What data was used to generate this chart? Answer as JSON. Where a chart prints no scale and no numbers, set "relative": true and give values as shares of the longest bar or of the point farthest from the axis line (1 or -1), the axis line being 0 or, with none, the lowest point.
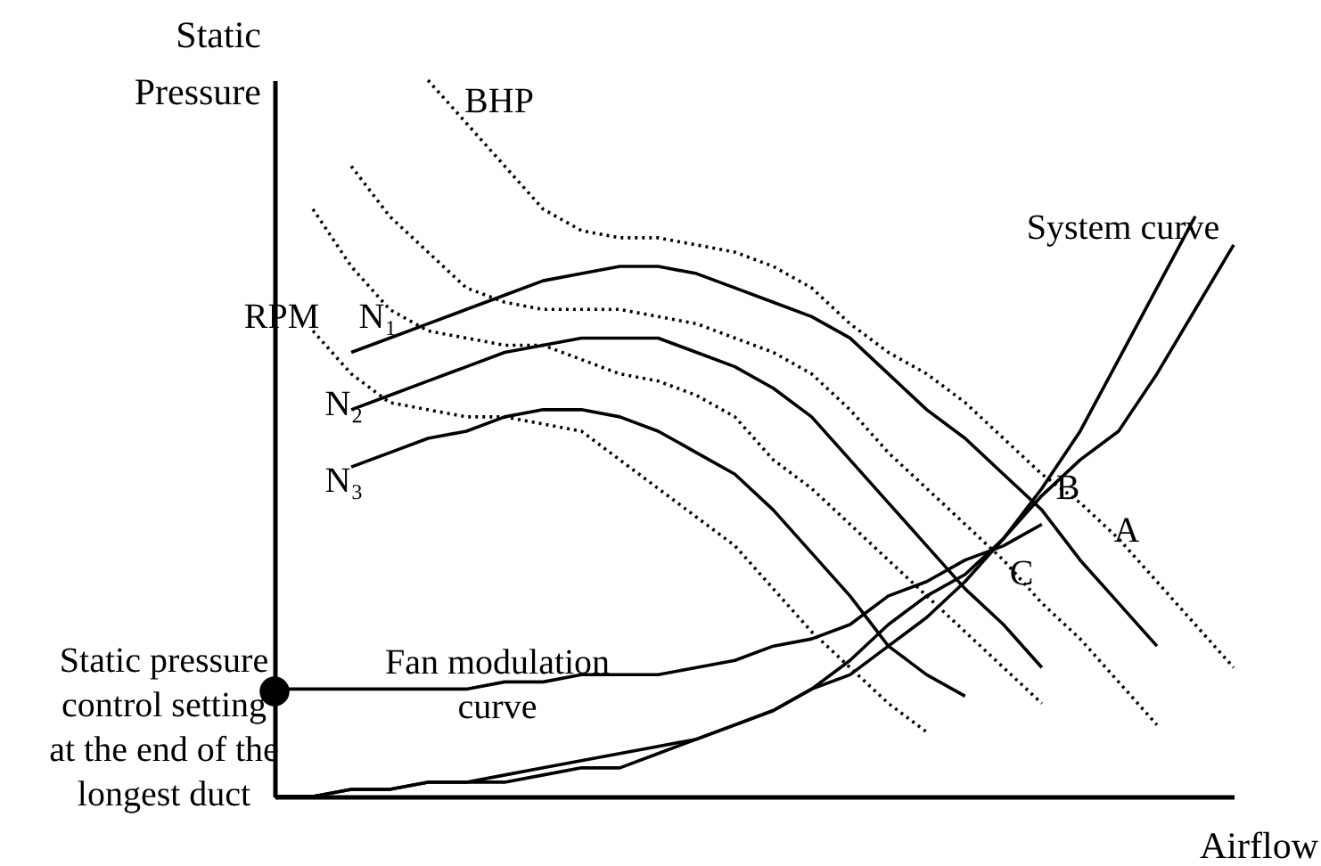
{
  "chart_data": {
    "type": "line",
    "relative": true,
    "xlabel": "Airflow",
    "ylabel": "Static Pressure",
    "grid": false,
    "categories": [
      null,
      null,
      null,
      null,
      null,
      null,
      null,
      null,
      null,
      null,
      null,
      null,
      null,
      null,
      null,
      null,
      null,
      null,
      null,
      null,
      null,
      null,
      null,
      null,
      null,
      null
    ],
    "series": [
      {
        "color": "#000000",
        "line_style": "solid",
        "values": [
          null,
          null,
          0.62,
          0.64,
          0.66,
          0.68,
          0.7,
          0.72,
          0.73,
          0.74,
          0.74,
          0.73,
          0.71,
          0.69,
          0.67,
          0.64,
          0.59,
          0.54,
          0.5,
          0.45,
          0.4,
          0.33,
          0.27,
          0.21,
          null,
          null
        ]
      },
      {
        "color": "#000000",
        "line_style": "solid",
        "values": [
          null,
          null,
          0.54,
          0.56,
          0.58,
          0.6,
          0.62,
          0.63,
          0.64,
          0.64,
          0.64,
          0.62,
          0.6,
          0.57,
          0.53,
          0.47,
          0.41,
          0.35,
          0.29,
          0.24,
          0.18,
          null,
          null,
          null,
          null,
          null
        ]
      },
      {
        "color": "#000000",
        "line_style": "solid",
        "values": [
          null,
          null,
          0.46,
          0.48,
          0.5,
          0.51,
          0.53,
          0.54,
          0.54,
          0.53,
          0.51,
          0.48,
          0.45,
          0.4,
          0.34,
          0.28,
          0.21,
          0.17,
          0.14,
          null,
          null,
          null,
          null,
          null,
          null,
          null
        ]
      },
      {
        "color": "#000000",
        "line_style": "dotted",
        "values": [
          null,
          null,
          null,
          null,
          1,
          0.94,
          0.88,
          0.82,
          0.79,
          0.78,
          0.78,
          0.77,
          0.76,
          0.74,
          0.71,
          0.66,
          0.62,
          0.59,
          0.55,
          0.5,
          0.45,
          0.41,
          0.36,
          0.3,
          0.24,
          0.18
        ]
      },
      {
        "color": "#000000",
        "line_style": "dotted",
        "values": [
          null,
          null,
          0.88,
          0.81,
          0.76,
          0.71,
          0.69,
          0.68,
          0.68,
          0.68,
          0.67,
          0.66,
          0.64,
          0.62,
          0.59,
          0.54,
          0.48,
          0.43,
          0.38,
          0.33,
          0.27,
          0.22,
          0.16,
          0.1,
          null,
          null
        ]
      },
      {
        "color": "#000000",
        "line_style": "dotted",
        "values": [
          null,
          0.82,
          0.74,
          0.68,
          0.65,
          0.64,
          0.63,
          0.63,
          0.61,
          0.59,
          0.58,
          0.56,
          0.53,
          0.47,
          0.43,
          0.38,
          0.33,
          0.28,
          0.23,
          0.18,
          0.13,
          null,
          null,
          null,
          null,
          null
        ]
      },
      {
        "color": "#000000",
        "line_style": "dotted",
        "values": [
          null,
          0.65,
          0.59,
          0.55,
          0.54,
          0.53,
          0.53,
          0.52,
          0.51,
          0.47,
          0.43,
          0.39,
          0.35,
          0.29,
          0.23,
          0.18,
          0.13,
          0.09,
          null,
          null,
          null,
          null,
          null,
          null,
          null,
          null
        ]
      },
      {
        "color": "#000000",
        "line_style": "solid",
        "values": [
          0,
          0,
          0.01,
          0.01,
          0.02,
          0.02,
          0.03,
          0.04,
          0.05,
          0.06,
          0.07,
          0.08,
          0.1,
          0.12,
          0.15,
          0.17,
          0.21,
          0.25,
          0.3,
          0.36,
          0.43,
          0.51,
          0.61,
          0.71,
          0.81,
          null
        ]
      },
      {
        "color": "#000000",
        "line_style": "solid",
        "values": [
          0,
          0,
          0.01,
          0.01,
          0.02,
          0.02,
          0.02,
          0.03,
          0.04,
          0.04,
          0.06,
          0.08,
          0.1,
          0.12,
          0.15,
          0.19,
          0.24,
          0.28,
          0.31,
          0.36,
          0.42,
          0.47,
          0.51,
          0.59,
          0.68,
          0.77
        ]
      },
      {
        "color": "#000000",
        "line_style": "solid",
        "values": [
          0.15,
          0.15,
          0.15,
          0.15,
          0.15,
          0.15,
          0.16,
          0.16,
          0.17,
          0.17,
          0.17,
          0.18,
          0.19,
          0.21,
          0.22,
          0.24,
          0.28,
          0.3,
          0.33,
          0.35,
          0.38,
          null,
          null,
          null,
          null,
          null
        ]
      }
    ],
    "annotations": [
      "BHP",
      "RPM",
      "N₁",
      "N₂",
      "N₃",
      "System curve",
      "B",
      "A",
      "C",
      "Fan modulation curve",
      "Static pressure control setting at the end of the longest duct"
    ]
  }
}
